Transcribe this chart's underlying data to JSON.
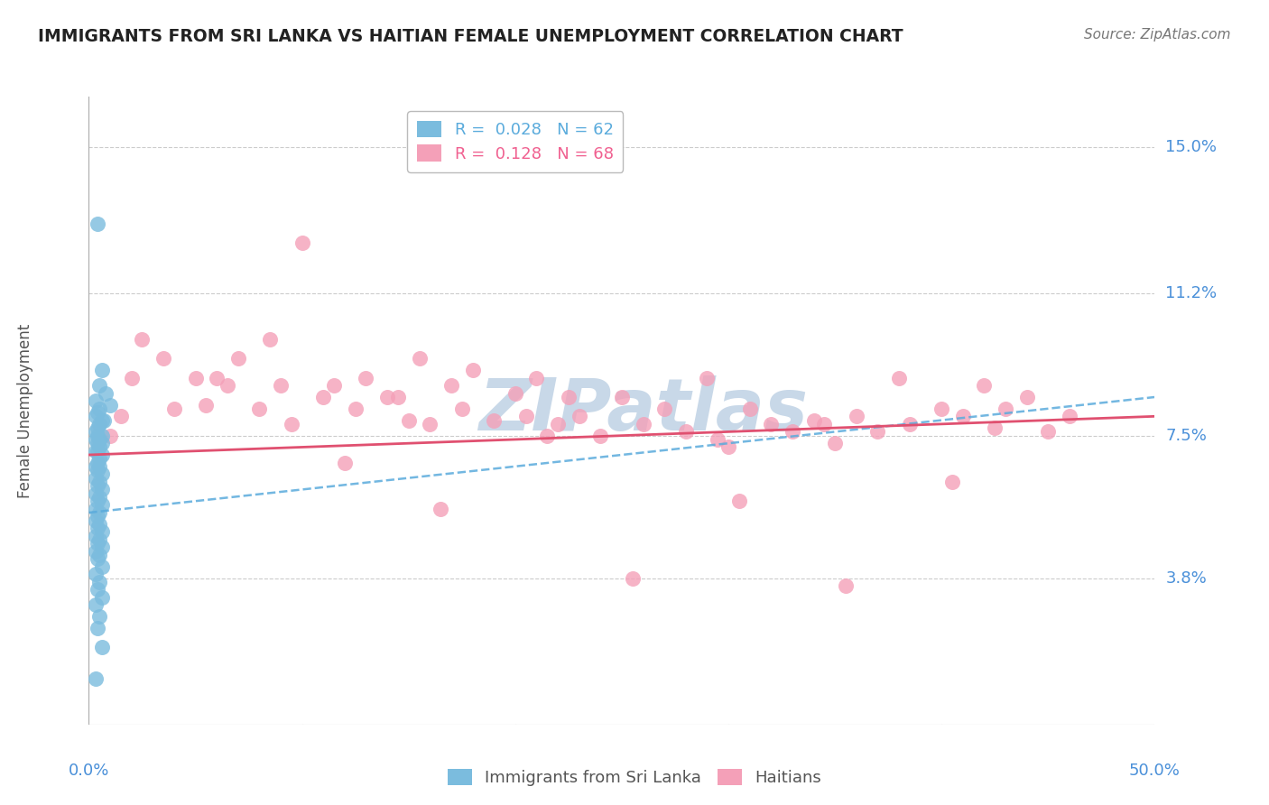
{
  "title": "IMMIGRANTS FROM SRI LANKA VS HAITIAN FEMALE UNEMPLOYMENT CORRELATION CHART",
  "source": "Source: ZipAtlas.com",
  "ylabel": "Female Unemployment",
  "xmin": 0.0,
  "xmax": 0.5,
  "ymin": 0.0,
  "ymax": 0.163,
  "yticks": [
    0.038,
    0.075,
    0.112,
    0.15
  ],
  "ytick_labels": [
    "3.8%",
    "7.5%",
    "11.2%",
    "15.0%"
  ],
  "xticks": [
    0.0,
    0.1,
    0.2,
    0.3,
    0.4,
    0.5
  ],
  "xtick_labels": [
    "0.0%",
    "",
    "",
    "",
    "",
    "50.0%"
  ],
  "legend_entries": [
    {
      "label": "R =  0.028   N = 62",
      "color": "#5aabdc"
    },
    {
      "label": "R =  0.128   N = 68",
      "color": "#f06090"
    }
  ],
  "legend_labels_bottom": [
    "Immigrants from Sri Lanka",
    "Haitians"
  ],
  "sri_lanka_color": "#7bbcde",
  "haitian_color": "#f4a0b8",
  "sri_lanka_x": [
    0.004,
    0.006,
    0.005,
    0.008,
    0.003,
    0.01,
    0.005,
    0.004,
    0.003,
    0.007,
    0.006,
    0.005,
    0.004,
    0.003,
    0.006,
    0.004,
    0.005,
    0.003,
    0.004,
    0.006,
    0.005,
    0.003,
    0.004,
    0.006,
    0.005,
    0.004,
    0.003,
    0.005,
    0.004,
    0.006,
    0.003,
    0.005,
    0.004,
    0.006,
    0.003,
    0.005,
    0.004,
    0.006,
    0.003,
    0.005,
    0.004,
    0.003,
    0.005,
    0.004,
    0.006,
    0.003,
    0.005,
    0.004,
    0.006,
    0.003,
    0.005,
    0.004,
    0.006,
    0.003,
    0.005,
    0.004,
    0.006,
    0.003,
    0.005,
    0.004,
    0.006,
    0.003
  ],
  "sri_lanka_y": [
    0.13,
    0.092,
    0.088,
    0.086,
    0.084,
    0.083,
    0.082,
    0.081,
    0.08,
    0.079,
    0.079,
    0.078,
    0.077,
    0.076,
    0.075,
    0.075,
    0.074,
    0.074,
    0.073,
    0.073,
    0.072,
    0.071,
    0.071,
    0.07,
    0.069,
    0.068,
    0.067,
    0.067,
    0.066,
    0.065,
    0.064,
    0.063,
    0.062,
    0.061,
    0.06,
    0.059,
    0.058,
    0.057,
    0.056,
    0.055,
    0.054,
    0.053,
    0.052,
    0.051,
    0.05,
    0.049,
    0.048,
    0.047,
    0.046,
    0.045,
    0.044,
    0.043,
    0.041,
    0.039,
    0.037,
    0.035,
    0.033,
    0.031,
    0.028,
    0.025,
    0.02,
    0.012
  ],
  "haitian_x": [
    0.02,
    0.015,
    0.025,
    0.035,
    0.05,
    0.055,
    0.07,
    0.065,
    0.08,
    0.085,
    0.09,
    0.1,
    0.11,
    0.115,
    0.125,
    0.13,
    0.14,
    0.15,
    0.155,
    0.16,
    0.17,
    0.175,
    0.18,
    0.19,
    0.2,
    0.205,
    0.21,
    0.22,
    0.225,
    0.23,
    0.24,
    0.25,
    0.26,
    0.27,
    0.28,
    0.29,
    0.3,
    0.31,
    0.32,
    0.33,
    0.34,
    0.35,
    0.36,
    0.37,
    0.38,
    0.385,
    0.4,
    0.41,
    0.42,
    0.425,
    0.43,
    0.44,
    0.45,
    0.46,
    0.01,
    0.04,
    0.06,
    0.095,
    0.12,
    0.145,
    0.165,
    0.215,
    0.255,
    0.305,
    0.355,
    0.405,
    0.295,
    0.345
  ],
  "haitian_y": [
    0.09,
    0.08,
    0.1,
    0.095,
    0.09,
    0.083,
    0.095,
    0.088,
    0.082,
    0.1,
    0.088,
    0.125,
    0.085,
    0.088,
    0.082,
    0.09,
    0.085,
    0.079,
    0.095,
    0.078,
    0.088,
    0.082,
    0.092,
    0.079,
    0.086,
    0.08,
    0.09,
    0.078,
    0.085,
    0.08,
    0.075,
    0.085,
    0.078,
    0.082,
    0.076,
    0.09,
    0.072,
    0.082,
    0.078,
    0.076,
    0.079,
    0.073,
    0.08,
    0.076,
    0.09,
    0.078,
    0.082,
    0.08,
    0.088,
    0.077,
    0.082,
    0.085,
    0.076,
    0.08,
    0.075,
    0.082,
    0.09,
    0.078,
    0.068,
    0.085,
    0.056,
    0.075,
    0.038,
    0.058,
    0.036,
    0.063,
    0.074,
    0.078
  ],
  "sri_lanka_trend": [
    0.055,
    0.085
  ],
  "haitian_trend": [
    0.07,
    0.08
  ],
  "watermark_text": "ZIPatlas",
  "watermark_color": "#c8d8e8",
  "background_color": "#ffffff",
  "grid_color": "#cccccc",
  "axis_color": "#aaaaaa",
  "title_color": "#222222",
  "label_color": "#555555",
  "tick_color": "#4a90d9"
}
